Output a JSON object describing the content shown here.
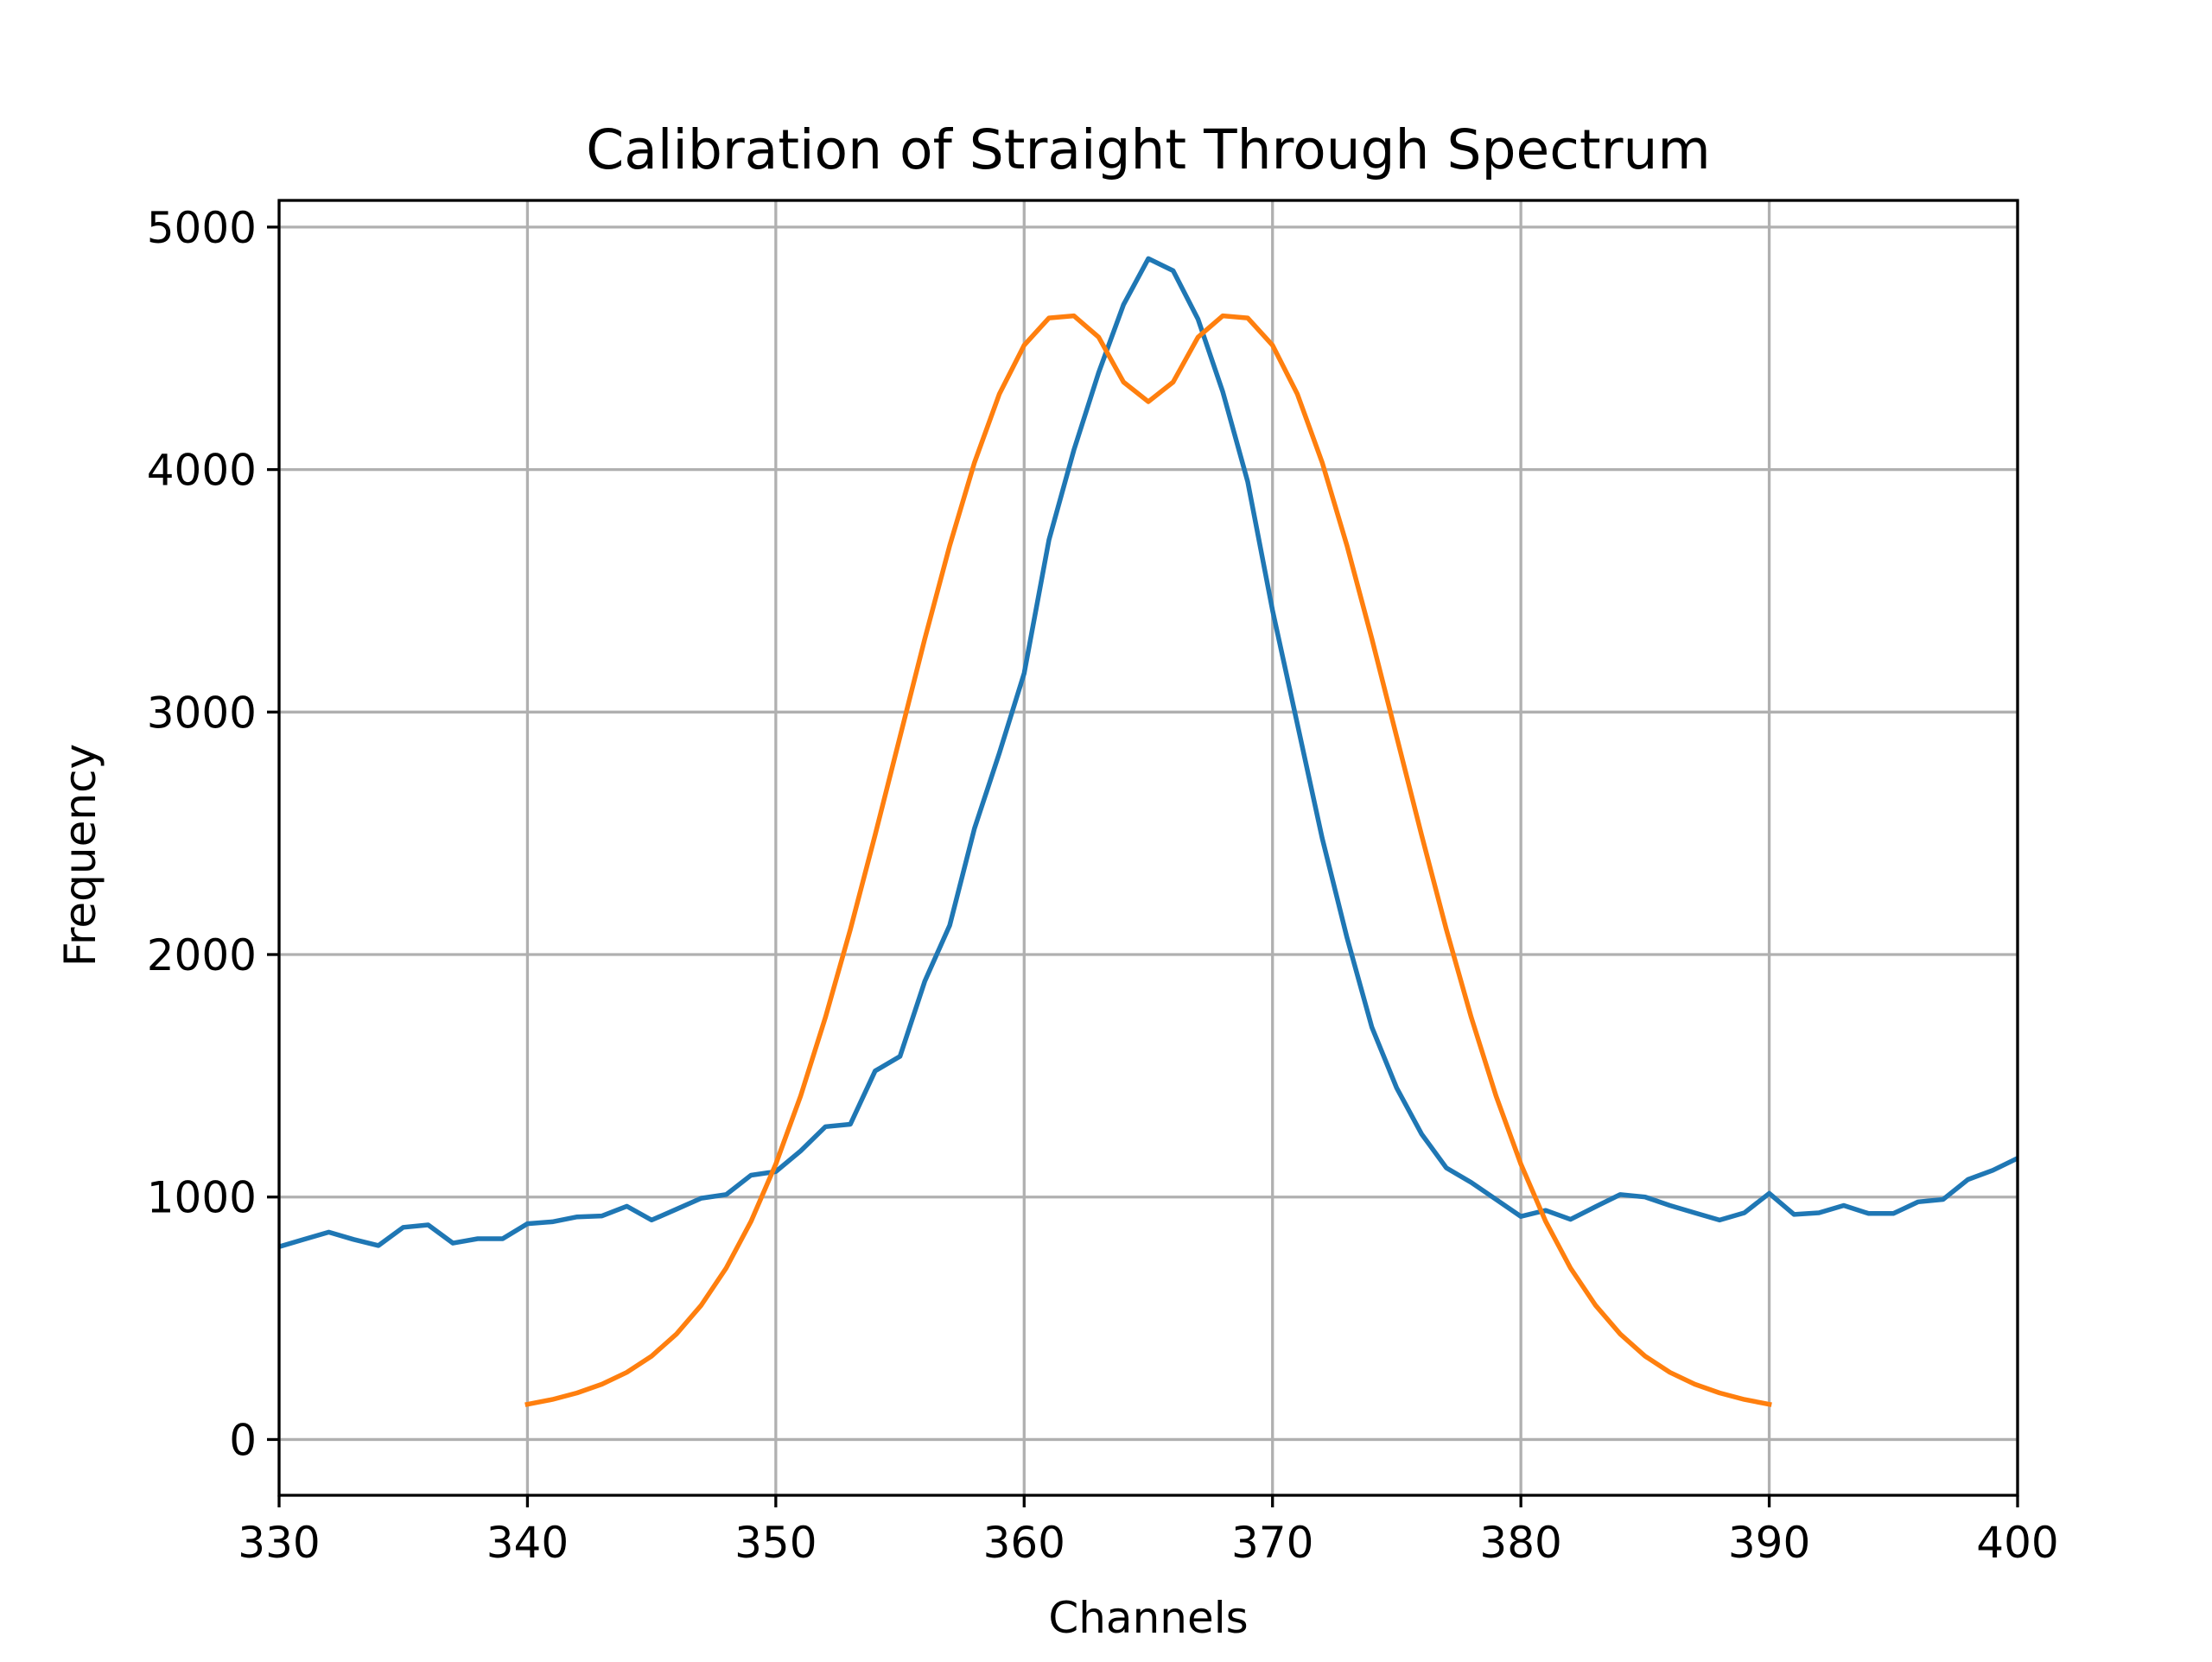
{
  "chart_data": {
    "type": "line",
    "title": "Calibration of Straight Through Spectrum",
    "xlabel": "Channels",
    "ylabel": "Frequency",
    "xlim": [
      330,
      400
    ],
    "ylim": [
      -230,
      5110
    ],
    "xticks": [
      330,
      340,
      350,
      360,
      370,
      380,
      390,
      400
    ],
    "yticks": [
      0,
      1000,
      2000,
      3000,
      4000,
      5000
    ],
    "xtick_labels": [
      "330",
      "340",
      "350",
      "360",
      "370",
      "380",
      "390",
      "400"
    ],
    "ytick_labels": [
      "0",
      "1000",
      "2000",
      "3000",
      "4000",
      "5000"
    ],
    "grid": true,
    "legend": "none",
    "series": [
      {
        "color": "#1f77b4",
        "style": "line",
        "x": [
          330,
          331,
          332,
          333,
          334,
          335,
          336,
          337,
          338,
          339,
          340,
          341,
          342,
          343,
          344,
          345,
          346,
          347,
          348,
          349,
          350,
          351,
          352,
          353,
          354,
          355,
          356,
          357,
          358,
          359,
          360,
          361,
          362,
          363,
          364,
          365,
          366,
          367,
          368,
          369,
          370,
          371,
          372,
          373,
          374,
          375,
          376,
          377,
          378,
          379,
          380,
          381,
          382,
          383,
          384,
          385,
          386,
          387,
          388,
          389,
          390,
          391,
          392,
          393,
          394,
          395,
          396,
          397,
          398,
          399,
          400
        ],
        "y": [
          795,
          825,
          855,
          825,
          800,
          875,
          885,
          810,
          828,
          828,
          890,
          898,
          918,
          922,
          962,
          905,
          950,
          995,
          1010,
          1090,
          1105,
          1190,
          1290,
          1300,
          1520,
          1580,
          1890,
          2120,
          2520,
          2830,
          3160,
          3710,
          4080,
          4400,
          4680,
          4870,
          4820,
          4620,
          4320,
          3950,
          3420,
          2950,
          2480,
          2070,
          1700,
          1450,
          1260,
          1120,
          1060,
          990,
          920,
          945,
          908,
          960,
          1010,
          1000,
          965,
          935,
          905,
          935,
          1015,
          928,
          935,
          965,
          932,
          932,
          980,
          990,
          1072,
          1110,
          1160
        ]
      },
      {
        "color": "#ff7f0e",
        "style": "line",
        "x": [
          340,
          341,
          342,
          343,
          344,
          345,
          346,
          347,
          348,
          349,
          350,
          351,
          352,
          353,
          354,
          355,
          356,
          357,
          358,
          359,
          360,
          361,
          362,
          363,
          364,
          365,
          366,
          367,
          368,
          369,
          370,
          371,
          372,
          373,
          374,
          375,
          376,
          377,
          378,
          379,
          380,
          381,
          382,
          383,
          384,
          385,
          386,
          387,
          388,
          389,
          390
        ],
        "y": [
          145,
          165,
          192,
          228,
          277,
          344,
          435,
          554,
          707,
          899,
          1136,
          1417,
          1741,
          2103,
          2493,
          2898,
          3302,
          3686,
          4029,
          4311,
          4513,
          4625,
          4634,
          4546,
          4361,
          4280,
          4361,
          4546,
          4634,
          4625,
          4513,
          4311,
          4029,
          3686,
          3302,
          2898,
          2493,
          2103,
          1741,
          1417,
          1136,
          899,
          707,
          554,
          435,
          344,
          277,
          228,
          192,
          165,
          145
        ]
      }
    ]
  }
}
